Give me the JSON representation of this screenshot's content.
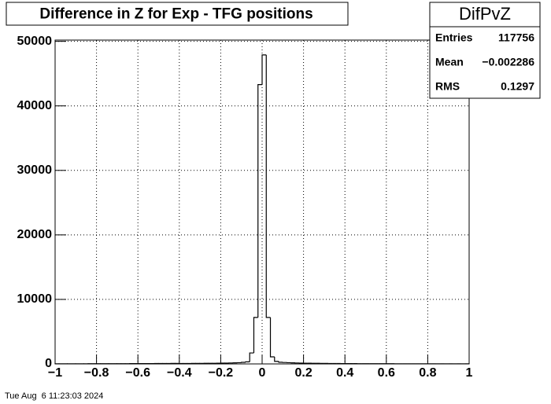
{
  "chart_data": {
    "type": "histogram",
    "title": "Difference in Z for Exp - TFG positions",
    "bins": [
      -1,
      -0.98,
      -0.96,
      -0.94,
      -0.92,
      -0.9,
      -0.88,
      -0.86,
      -0.84,
      -0.82,
      -0.8,
      -0.78,
      -0.76,
      -0.74,
      -0.72,
      -0.7,
      -0.68,
      -0.66,
      -0.64,
      -0.62,
      -0.6,
      -0.58,
      -0.56,
      -0.54,
      -0.52,
      -0.5,
      -0.48,
      -0.46,
      -0.44,
      -0.42,
      -0.4,
      -0.38,
      -0.36,
      -0.34,
      -0.32,
      -0.3,
      -0.28,
      -0.26,
      -0.24,
      -0.22,
      -0.2,
      -0.18,
      -0.16,
      -0.14,
      -0.12,
      -0.1,
      -0.08,
      -0.06,
      -0.04,
      -0.02,
      0,
      0.02,
      0.04,
      0.06,
      0.08,
      0.1,
      0.12,
      0.14,
      0.16,
      0.18,
      0.2,
      0.22,
      0.24,
      0.26,
      0.28,
      0.3,
      0.32,
      0.34,
      0.36,
      0.38,
      0.4,
      0.42,
      0.44,
      0.46,
      0.48,
      0.5,
      0.52,
      0.54,
      0.56,
      0.58,
      0.6,
      0.62,
      0.64,
      0.66,
      0.68,
      0.7,
      0.72,
      0.74,
      0.76,
      0.78,
      0.8,
      0.82,
      0.84,
      0.86,
      0.88,
      0.9,
      0.92,
      0.94,
      0.96,
      0.98,
      1
    ],
    "values": [
      18,
      20,
      19,
      22,
      21,
      24,
      23,
      25,
      27,
      26,
      29,
      31,
      30,
      34,
      33,
      36,
      38,
      40,
      42,
      45,
      47,
      50,
      53,
      55,
      58,
      62,
      66,
      70,
      75,
      80,
      60,
      64,
      68,
      72,
      77,
      82,
      88,
      94,
      100,
      108,
      118,
      130,
      145,
      165,
      190,
      240,
      320,
      1700,
      7200,
      43300,
      47900,
      7200,
      1100,
      400,
      260,
      220,
      190,
      165,
      145,
      128,
      115,
      103,
      95,
      88,
      80,
      74,
      68,
      63,
      58,
      54,
      50,
      47,
      44,
      41,
      38,
      36,
      34,
      32,
      30,
      28,
      27,
      26,
      24,
      23,
      22,
      21,
      20,
      19,
      18,
      18,
      17,
      16,
      16,
      15,
      15,
      14,
      14,
      13,
      13,
      12
    ],
    "color": "#000000",
    "xlim": [
      -1,
      1
    ],
    "xticks": [
      {
        "value": -1,
        "label": "−1"
      },
      {
        "value": -0.8,
        "label": "−0.8"
      },
      {
        "value": -0.6,
        "label": "−0.6"
      },
      {
        "value": -0.4,
        "label": "−0.4"
      },
      {
        "value": -0.2,
        "label": "−0.2"
      },
      0,
      0.2,
      0.4,
      0.6,
      0.8,
      1
    ],
    "ylim": [
      0,
      50200
    ],
    "yticks": [
      0,
      10000,
      20000,
      30000,
      40000,
      50000
    ],
    "grid": true,
    "stats": {
      "title": "DifPvZ",
      "rows": [
        [
          "Entries",
          "117756"
        ],
        [
          "Mean",
          "−0.002286"
        ],
        [
          "RMS",
          "0.1297"
        ]
      ]
    },
    "timestamp": "Tue Aug  6 11:23:03 2024"
  }
}
